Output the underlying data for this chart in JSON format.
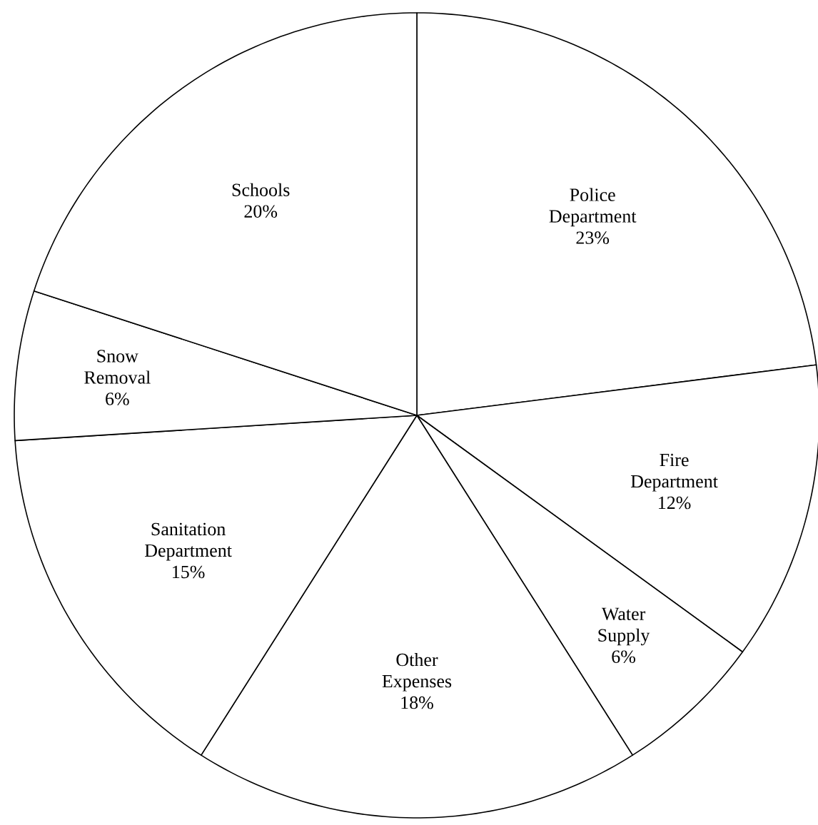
{
  "chart_data": {
    "type": "pie",
    "categories": [
      "Police Department",
      "Fire Department",
      "Water Supply",
      "Other Expenses",
      "Sanitation Department",
      "Snow Removal",
      "Schools"
    ],
    "values": [
      23,
      12,
      6,
      18,
      15,
      6,
      20
    ],
    "value_labels": [
      "23%",
      "12%",
      "6%",
      "18%",
      "15%",
      "6%",
      "20%"
    ],
    "colors": [
      "#ffffff",
      "#ffffff",
      "#ffffff",
      "#ffffff",
      "#ffffff",
      "#ffffff",
      "#ffffff"
    ]
  }
}
